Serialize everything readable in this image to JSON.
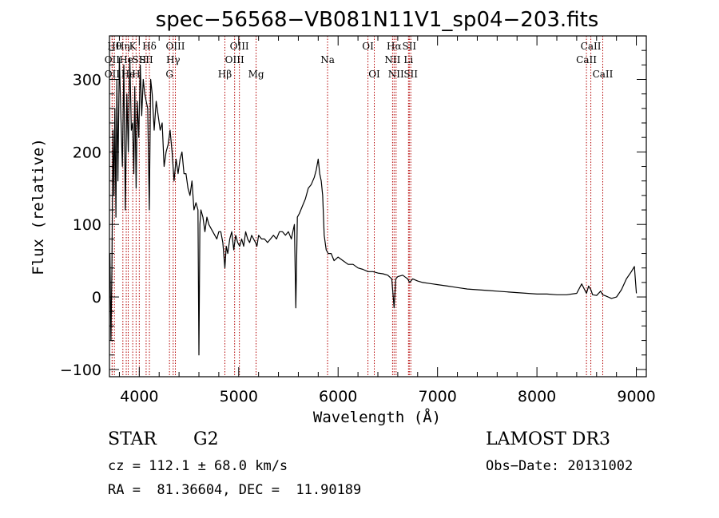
{
  "chart_data": {
    "type": "line",
    "title": "spec−56568−VB081N11V1_sp04−203.fits",
    "xlabel": "Wavelength (Å)",
    "ylabel": "Flux (relative)",
    "xlim": [
      3700,
      9100
    ],
    "ylim": [
      -110,
      360
    ],
    "x_ticks": [
      {
        "value": 4000,
        "label": "4000"
      },
      {
        "value": 5000,
        "label": "5000"
      },
      {
        "value": 6000,
        "label": "6000"
      },
      {
        "value": 7000,
        "label": "7000"
      },
      {
        "value": 8000,
        "label": "8000"
      },
      {
        "value": 9000,
        "label": "9000"
      }
    ],
    "y_ticks": [
      {
        "value": -100,
        "label": "−100"
      },
      {
        "value": 0,
        "label": "0"
      },
      {
        "value": 100,
        "label": "100"
      },
      {
        "value": 200,
        "label": "200"
      },
      {
        "value": 300,
        "label": "300"
      }
    ],
    "series": [
      {
        "name": "flux",
        "x": [
          3705,
          3715,
          3725,
          3735,
          3745,
          3755,
          3765,
          3775,
          3785,
          3800,
          3815,
          3830,
          3845,
          3860,
          3875,
          3890,
          3905,
          3920,
          3933,
          3945,
          3955,
          3968,
          3980,
          3995,
          4010,
          4025,
          4040,
          4055,
          4070,
          4085,
          4101,
          4115,
          4130,
          4150,
          4170,
          4190,
          4210,
          4230,
          4250,
          4270,
          4290,
          4310,
          4330,
          4350,
          4370,
          4390,
          4410,
          4430,
          4450,
          4470,
          4490,
          4510,
          4530,
          4550,
          4570,
          4590,
          4600,
          4610,
          4620,
          4640,
          4660,
          4680,
          4700,
          4720,
          4740,
          4760,
          4780,
          4800,
          4820,
          4840,
          4861,
          4875,
          4890,
          4910,
          4930,
          4950,
          4970,
          4990,
          5010,
          5030,
          5050,
          5070,
          5090,
          5110,
          5130,
          5150,
          5170,
          5183,
          5200,
          5230,
          5260,
          5290,
          5320,
          5350,
          5380,
          5410,
          5440,
          5470,
          5500,
          5530,
          5560,
          5575,
          5590,
          5610,
          5640,
          5670,
          5700,
          5730,
          5760,
          5780,
          5800,
          5815,
          5830,
          5845,
          5860,
          5880,
          5900,
          5930,
          5960,
          6000,
          6050,
          6100,
          6150,
          6200,
          6250,
          6300,
          6350,
          6400,
          6450,
          6500,
          6540,
          6563,
          6580,
          6600,
          6650,
          6700,
          6720,
          6750,
          6800,
          6850,
          6900,
          6950,
          7000,
          7050,
          7100,
          7150,
          7200,
          7250,
          7300,
          7400,
          7500,
          7600,
          7700,
          7800,
          7900,
          8000,
          8100,
          8200,
          8300,
          8400,
          8450,
          8498,
          8520,
          8542,
          8560,
          8600,
          8640,
          8662,
          8700,
          8750,
          8800,
          8850,
          8900,
          8950,
          8980,
          9000
        ],
        "y": [
          60,
          -60,
          40,
          230,
          140,
          260,
          110,
          300,
          160,
          330,
          250,
          180,
          320,
          120,
          280,
          200,
          330,
          230,
          240,
          170,
          290,
          150,
          270,
          220,
          320,
          250,
          300,
          280,
          270,
          260,
          120,
          300,
          280,
          230,
          270,
          250,
          230,
          240,
          180,
          200,
          210,
          230,
          200,
          160,
          190,
          170,
          190,
          200,
          170,
          170,
          150,
          140,
          160,
          120,
          130,
          120,
          -80,
          100,
          120,
          110,
          90,
          110,
          100,
          95,
          90,
          85,
          80,
          90,
          90,
          75,
          40,
          70,
          60,
          80,
          90,
          65,
          85,
          75,
          70,
          80,
          70,
          90,
          80,
          75,
          85,
          80,
          75,
          70,
          85,
          80,
          80,
          75,
          80,
          85,
          80,
          90,
          90,
          85,
          90,
          80,
          100,
          -15,
          110,
          115,
          125,
          135,
          150,
          155,
          165,
          175,
          190,
          170,
          160,
          140,
          85,
          65,
          60,
          60,
          50,
          55,
          50,
          45,
          45,
          40,
          38,
          35,
          35,
          33,
          32,
          30,
          25,
          -15,
          25,
          28,
          30,
          25,
          20,
          25,
          22,
          20,
          19,
          18,
          17,
          16,
          15,
          14,
          13,
          12,
          11,
          10,
          9,
          8,
          7,
          6,
          5,
          4,
          4,
          3,
          3,
          5,
          18,
          5,
          15,
          10,
          3,
          2,
          8,
          3,
          1,
          -2,
          0,
          10,
          25,
          35,
          42,
          5
        ]
      }
    ],
    "lines": [
      {
        "wl": 3750,
        "label": "Hθ",
        "row": 1
      },
      {
        "wl": 3727,
        "label": "OII",
        "row": 2
      },
      {
        "wl": 3727,
        "label": "OII",
        "row": 3
      },
      {
        "wl": 3835,
        "label": "Hη",
        "row": 1
      },
      {
        "wl": 3869,
        "label": "He",
        "row": 2
      },
      {
        "wl": 3889,
        "label": "He",
        "row": 3
      },
      {
        "wl": 3934,
        "label": "K",
        "row": 1
      },
      {
        "wl": 3968,
        "label": "H",
        "row": 3
      },
      {
        "wl": 4000,
        "label": "SII",
        "row": 2
      },
      {
        "wl": 4102,
        "label": "Hδ",
        "row": 1
      },
      {
        "wl": 4069,
        "label": "SII",
        "row": 2
      },
      {
        "wl": 4304,
        "label": "G",
        "row": 3
      },
      {
        "wl": 4341,
        "label": "Hγ",
        "row": 2
      },
      {
        "wl": 4363,
        "label": "OIII",
        "row": 1
      },
      {
        "wl": 4861,
        "label": "Hβ",
        "row": 3
      },
      {
        "wl": 4959,
        "label": "OIII",
        "row": 2
      },
      {
        "wl": 5007,
        "label": "OIII",
        "row": 1
      },
      {
        "wl": 5175,
        "label": "Mg",
        "row": 3
      },
      {
        "wl": 5894,
        "label": "Na",
        "row": 2
      },
      {
        "wl": 6300,
        "label": "OI",
        "row": 1
      },
      {
        "wl": 6364,
        "label": "OI",
        "row": 3
      },
      {
        "wl": 6548,
        "label": "NII",
        "row": 2
      },
      {
        "wl": 6563,
        "label": "Hα",
        "row": 1
      },
      {
        "wl": 6583,
        "label": "NII",
        "row": 3
      },
      {
        "wl": 6708,
        "label": "Li",
        "row": 2
      },
      {
        "wl": 6716,
        "label": "SII",
        "row": 1
      },
      {
        "wl": 6731,
        "label": "SII",
        "row": 3
      },
      {
        "wl": 8498,
        "label": "CaII",
        "row": 2
      },
      {
        "wl": 8542,
        "label": "CaII",
        "row": 1
      },
      {
        "wl": 8662,
        "label": "CaII",
        "row": 3
      }
    ]
  },
  "info": {
    "class_label": "STAR",
    "subclass": "G2",
    "cz": "cz = 112.1 ± 68.0 km/s",
    "radec": "RA =  81.36604, DEC =  11.90189",
    "survey": "LAMOST DR3",
    "obs_date": "Obs−Date: 20131002"
  }
}
